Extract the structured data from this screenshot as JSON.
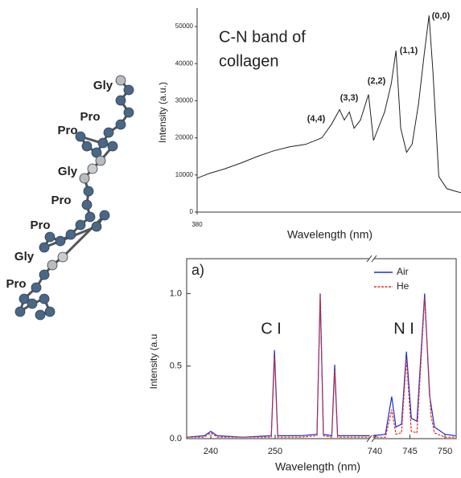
{
  "molecule": {
    "labels": [
      "Gly",
      "Pro",
      "Pro",
      "Gly",
      "Pro",
      "Pro",
      "Gly",
      "Pro"
    ]
  },
  "chart_data": [
    {
      "type": "line",
      "ylabel": "Intensity (a.u.)",
      "xlabel": "Wavelength (nm)",
      "annotations": [
        "C-N band of",
        "collagen",
        "(4,4)",
        "(3,3)",
        "(2,2)",
        "(1,1)",
        "(0,0)"
      ],
      "xlim": [
        380,
        389.5
      ],
      "xticks": [
        380
      ],
      "ylim": [
        0,
        55000
      ],
      "yticks": [
        0,
        10000,
        20000,
        30000,
        40000,
        50000
      ],
      "series": [
        {
          "name": "C-N",
          "color": "#222222",
          "x": [
            380,
            380.43,
            381.01,
            381.59,
            382.17,
            382.75,
            383.33,
            383.91,
            384.49,
            384.84,
            385.13,
            385.3,
            385.48,
            385.65,
            385.88,
            386.17,
            386.35,
            386.52,
            386.75,
            386.99,
            387.16,
            387.33,
            387.54,
            387.74,
            387.97,
            388.17,
            388.35,
            388.49,
            388.7,
            388.99,
            389.28,
            389.51
          ],
          "values": [
            9130,
            10400,
            11700,
            13260,
            15000,
            16500,
            17600,
            18260,
            20000,
            23700,
            27600,
            24800,
            27000,
            22600,
            24800,
            31700,
            19300,
            22600,
            27000,
            34600,
            43500,
            22600,
            16100,
            18300,
            29100,
            42200,
            53000,
            37800,
            9600,
            6300,
            5650,
            5200
          ]
        }
      ]
    },
    {
      "type": "line",
      "ylabel": "Intensity (a.u",
      "xlabel": "Wavelength (nm)",
      "annotations": [
        "a)",
        "C I",
        "N I"
      ],
      "xlim": [
        236.25,
        751.6
      ],
      "xbreak": [
        264.75,
        739.6
      ],
      "xticks": [
        240,
        250,
        740,
        745,
        750
      ],
      "ylim": [
        0,
        1.24
      ],
      "yticks": [
        {
          "value": 0,
          "label": "0.0"
        },
        {
          "value": 0.5,
          "label": "0.5"
        },
        {
          "value": 1,
          "label": "1.0"
        }
      ],
      "series": [
        {
          "name": "Air",
          "color": "#1f2bd8",
          "x": [
            236.3,
            239,
            240,
            241,
            245,
            249.4,
            249.9,
            250.4,
            254,
            256.5,
            257,
            257.5,
            258.8,
            259.25,
            259.7,
            262,
            264.7,
            739.7,
            741.5,
            742.4,
            743,
            743.8,
            744.5,
            745.2,
            746,
            747.1,
            747.8,
            748.5,
            750,
            751.5
          ],
          "values": [
            0.01,
            0.02,
            0.05,
            0.02,
            0.01,
            0.02,
            0.61,
            0.02,
            0.02,
            0.03,
            1.0,
            0.03,
            0.02,
            0.51,
            0.02,
            0.02,
            0.02,
            0.02,
            0.03,
            0.29,
            0.08,
            0.1,
            0.6,
            0.14,
            0.12,
            1.0,
            0.3,
            0.08,
            0.03,
            0.02
          ]
        },
        {
          "name": "He",
          "color": "#e0301e",
          "x": [
            236.3,
            239,
            240,
            241,
            245,
            249.4,
            249.9,
            250.4,
            254,
            256.5,
            257,
            257.5,
            258.8,
            259.25,
            259.7,
            262,
            264.7,
            739.7,
            741.5,
            742.4,
            743,
            743.8,
            744.5,
            745.2,
            746,
            747.1,
            748,
            748.5,
            750,
            751.5
          ],
          "values": [
            0.01,
            0.01,
            0.04,
            0.01,
            0.01,
            0.01,
            0.56,
            0.01,
            0.01,
            0.02,
            0.98,
            0.02,
            0.01,
            0.47,
            0.01,
            0.01,
            0.01,
            0.01,
            0.01,
            0.2,
            0.03,
            0.04,
            0.55,
            0.05,
            0.04,
            0.97,
            0.16,
            0.04,
            0.01,
            0.01
          ]
        }
      ]
    }
  ]
}
